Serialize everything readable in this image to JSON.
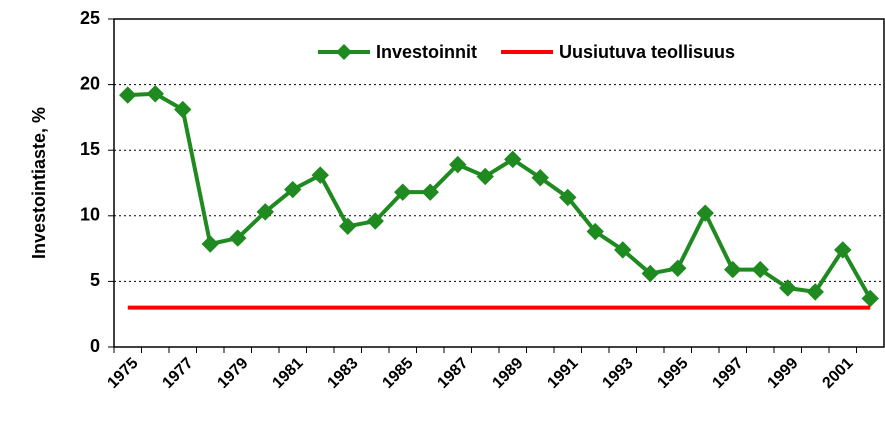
{
  "chart_data": {
    "type": "line",
    "ylabel": "Investointiaste, %",
    "categories": [
      "1975",
      null,
      "1977",
      null,
      "1979",
      null,
      "1981",
      null,
      "1983",
      null,
      "1985",
      null,
      "1987",
      null,
      "1989",
      null,
      "1991",
      null,
      "1993",
      null,
      "1995",
      null,
      "1997",
      null,
      "1999",
      null,
      "2001",
      null
    ],
    "series": [
      {
        "name": "Investoinnit",
        "color": "#1f8a1f",
        "marker": "diamond",
        "values": [
          19.2,
          19.3,
          18.1,
          7.85,
          8.3,
          10.3,
          12.0,
          13.1,
          9.2,
          9.6,
          11.8,
          11.8,
          13.9,
          13.0,
          14.3,
          12.9,
          11.4,
          8.8,
          7.4,
          5.6,
          6.0,
          10.2,
          5.9,
          5.9,
          4.5,
          4.2,
          7.4,
          3.7
        ]
      },
      {
        "name": "Uusiutuva teollisuus",
        "color": "#ff0000",
        "marker": "none",
        "values": [
          3,
          3,
          3,
          3,
          3,
          3,
          3,
          3,
          3,
          3,
          3,
          3,
          3,
          3,
          3,
          3,
          3,
          3,
          3,
          3,
          3,
          3,
          3,
          3,
          3,
          3,
          3,
          3
        ]
      }
    ],
    "ylim": [
      0,
      25
    ],
    "yticks": [
      0,
      5,
      10,
      15,
      20,
      25
    ],
    "grid": true,
    "legend": "top-right"
  }
}
